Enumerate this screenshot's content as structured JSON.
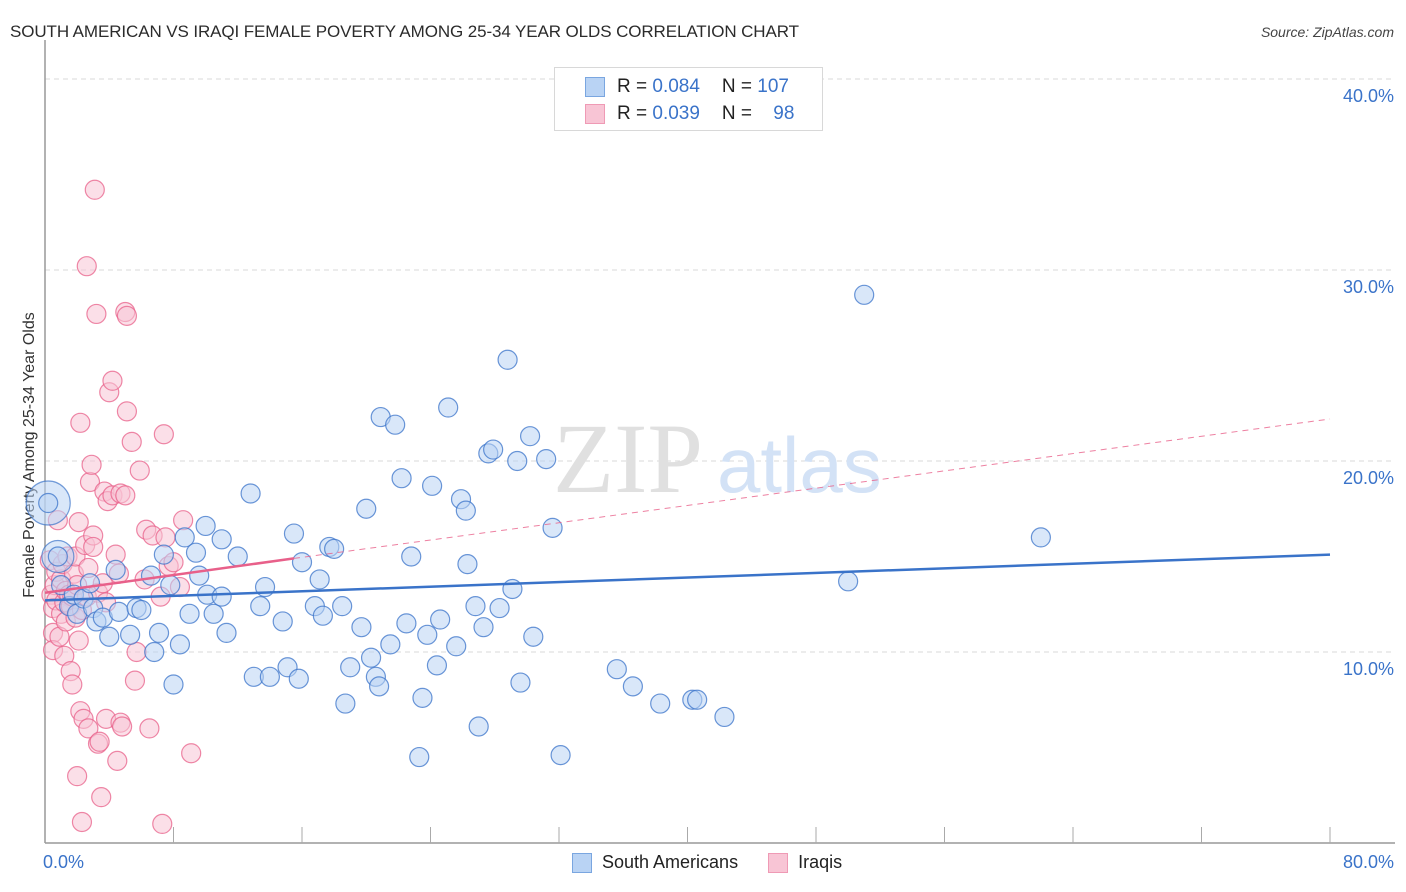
{
  "header": {
    "title": "SOUTH AMERICAN VS IRAQI FEMALE POVERTY AMONG 25-34 YEAR OLDS CORRELATION CHART",
    "source": "Source: ZipAtlas.com"
  },
  "legend_top": {
    "rows": [
      {
        "r_label": "R = ",
        "r_value": "0.084",
        "n_label": "N = ",
        "n_value": "107"
      },
      {
        "r_label": "R = ",
        "r_value": "0.039",
        "n_label": "N = ",
        "n_value": "98"
      }
    ]
  },
  "legend_bottom": {
    "items": [
      {
        "label": "South Americans"
      },
      {
        "label": "Iraqis"
      }
    ]
  },
  "axes": {
    "ylabel": "Female Poverty Among 25-34 Year Olds",
    "yticks": [
      "40.0%",
      "30.0%",
      "20.0%",
      "10.0%"
    ],
    "xticks": [
      "0.0%",
      "80.0%"
    ]
  },
  "colors": {
    "south_americans": "#3a73c9",
    "south_americans_fill": "#b9d3f4",
    "iraqis": "#e8608a",
    "iraqis_fill": "#f8c5d5",
    "tick_text": "#3a73c9"
  },
  "watermark": {
    "zip": "ZIP",
    "atlas": "atlas"
  },
  "chart_data": {
    "type": "scatter",
    "title": "SOUTH AMERICAN VS IRAQI FEMALE POVERTY AMONG 25-34 YEAR OLDS CORRELATION CHART",
    "xlabel": "",
    "ylabel": "Female Poverty Among 25-34 Year Olds",
    "xlim": [
      0,
      80
    ],
    "ylim": [
      0,
      40
    ],
    "x_tick_labels": [
      "0.0%",
      "80.0%"
    ],
    "y_tick_labels": [
      "10.0%",
      "20.0%",
      "30.0%",
      "40.0%"
    ],
    "grid": true,
    "legend_position": "bottom",
    "series": [
      {
        "name": "South Americans",
        "R": 0.084,
        "N": 107,
        "trendline": {
          "x": [
            0,
            80
          ],
          "y": [
            12.7,
            15.1
          ]
        },
        "points": [
          [
            0.2,
            17.8
          ],
          [
            0.8,
            15.0
          ],
          [
            1.0,
            13.5
          ],
          [
            1.5,
            12.4
          ],
          [
            1.8,
            13.0
          ],
          [
            2.0,
            12.0
          ],
          [
            2.4,
            12.8
          ],
          [
            2.8,
            13.6
          ],
          [
            3.0,
            12.3
          ],
          [
            3.2,
            11.6
          ],
          [
            3.6,
            11.8
          ],
          [
            4.0,
            10.8
          ],
          [
            4.4,
            14.3
          ],
          [
            4.6,
            12.1
          ],
          [
            5.3,
            10.9
          ],
          [
            5.7,
            12.3
          ],
          [
            6.0,
            12.2
          ],
          [
            6.6,
            14.0
          ],
          [
            6.8,
            10.0
          ],
          [
            7.1,
            11.0
          ],
          [
            7.4,
            15.1
          ],
          [
            7.8,
            13.5
          ],
          [
            8.0,
            8.3
          ],
          [
            8.4,
            10.4
          ],
          [
            8.7,
            16.0
          ],
          [
            9.0,
            12.0
          ],
          [
            9.4,
            15.2
          ],
          [
            9.6,
            14.0
          ],
          [
            10.0,
            16.6
          ],
          [
            10.1,
            13.0
          ],
          [
            10.5,
            12.0
          ],
          [
            11.0,
            12.9
          ],
          [
            11.0,
            15.9
          ],
          [
            11.3,
            11.0
          ],
          [
            12.0,
            15.0
          ],
          [
            12.8,
            18.3
          ],
          [
            13.0,
            8.7
          ],
          [
            13.4,
            12.4
          ],
          [
            13.7,
            13.4
          ],
          [
            14.0,
            8.7
          ],
          [
            14.8,
            11.6
          ],
          [
            15.1,
            9.2
          ],
          [
            15.5,
            16.2
          ],
          [
            15.8,
            8.6
          ],
          [
            16.0,
            14.7
          ],
          [
            16.8,
            12.4
          ],
          [
            17.1,
            13.8
          ],
          [
            17.3,
            11.9
          ],
          [
            17.7,
            15.5
          ],
          [
            18.0,
            15.4
          ],
          [
            18.5,
            12.4
          ],
          [
            18.7,
            7.3
          ],
          [
            19.0,
            9.2
          ],
          [
            19.7,
            11.3
          ],
          [
            20.0,
            17.5
          ],
          [
            20.3,
            9.7
          ],
          [
            20.6,
            8.7
          ],
          [
            20.8,
            8.2
          ],
          [
            20.9,
            22.3
          ],
          [
            21.5,
            10.4
          ],
          [
            21.8,
            21.9
          ],
          [
            22.2,
            19.1
          ],
          [
            22.5,
            11.5
          ],
          [
            22.8,
            15.0
          ],
          [
            23.3,
            4.5
          ],
          [
            23.5,
            7.6
          ],
          [
            23.8,
            10.9
          ],
          [
            24.1,
            18.7
          ],
          [
            24.4,
            9.3
          ],
          [
            24.6,
            11.7
          ],
          [
            25.1,
            22.8
          ],
          [
            25.6,
            10.3
          ],
          [
            25.9,
            18.0
          ],
          [
            26.2,
            17.4
          ],
          [
            26.3,
            14.6
          ],
          [
            26.8,
            12.4
          ],
          [
            27.0,
            6.1
          ],
          [
            27.3,
            11.3
          ],
          [
            27.6,
            20.4
          ],
          [
            27.9,
            20.6
          ],
          [
            28.3,
            12.3
          ],
          [
            28.8,
            25.3
          ],
          [
            29.1,
            13.3
          ],
          [
            29.4,
            20.0
          ],
          [
            29.6,
            8.4
          ],
          [
            30.2,
            21.3
          ],
          [
            30.4,
            10.8
          ],
          [
            31.2,
            20.1
          ],
          [
            31.6,
            16.5
          ],
          [
            32.1,
            4.6
          ],
          [
            35.6,
            9.1
          ],
          [
            36.6,
            8.2
          ],
          [
            38.3,
            7.3
          ],
          [
            40.3,
            7.5
          ],
          [
            40.6,
            7.5
          ],
          [
            42.3,
            6.6
          ],
          [
            50.0,
            13.7
          ],
          [
            51.0,
            28.7
          ],
          [
            62.0,
            16.0
          ]
        ]
      },
      {
        "name": "Iraqis",
        "R": 0.039,
        "N": 98,
        "trendline": {
          "x": [
            0,
            15.5
          ],
          "y": [
            13.1,
            14.9
          ],
          "extrapolated": {
            "x": [
              15.5,
              80
            ],
            "y": [
              14.9,
              22.2
            ]
          }
        },
        "points": [
          [
            0.3,
            14.8
          ],
          [
            0.4,
            13.0
          ],
          [
            0.5,
            12.3
          ],
          [
            0.5,
            11.0
          ],
          [
            0.5,
            10.1
          ],
          [
            0.6,
            13.5
          ],
          [
            0.7,
            12.7
          ],
          [
            0.7,
            14.2
          ],
          [
            0.8,
            16.9
          ],
          [
            0.9,
            10.8
          ],
          [
            1.0,
            13.8
          ],
          [
            1.0,
            12.0
          ],
          [
            1.1,
            14.6
          ],
          [
            1.2,
            12.6
          ],
          [
            1.2,
            9.8
          ],
          [
            1.3,
            13.2
          ],
          [
            1.3,
            11.6
          ],
          [
            1.4,
            15.0
          ],
          [
            1.5,
            13.0
          ],
          [
            1.6,
            12.4
          ],
          [
            1.6,
            9.0
          ],
          [
            1.7,
            12.9
          ],
          [
            1.7,
            8.3
          ],
          [
            1.8,
            14.1
          ],
          [
            1.9,
            11.8
          ],
          [
            1.9,
            15.0
          ],
          [
            2.0,
            3.5
          ],
          [
            2.0,
            13.5
          ],
          [
            2.1,
            10.6
          ],
          [
            2.1,
            16.8
          ],
          [
            2.2,
            6.9
          ],
          [
            2.2,
            22.0
          ],
          [
            2.3,
            12.2
          ],
          [
            2.3,
            1.1
          ],
          [
            2.4,
            6.5
          ],
          [
            2.5,
            15.6
          ],
          [
            2.6,
            30.2
          ],
          [
            2.6,
            12.9
          ],
          [
            2.7,
            14.4
          ],
          [
            2.7,
            6.0
          ],
          [
            2.8,
            18.9
          ],
          [
            2.9,
            19.8
          ],
          [
            3.0,
            16.1
          ],
          [
            3.0,
            15.5
          ],
          [
            3.1,
            34.2
          ],
          [
            3.2,
            27.7
          ],
          [
            3.3,
            5.2
          ],
          [
            3.3,
            13.1
          ],
          [
            3.4,
            5.3
          ],
          [
            3.5,
            2.4
          ],
          [
            3.6,
            13.6
          ],
          [
            3.7,
            18.4
          ],
          [
            3.8,
            12.6
          ],
          [
            3.8,
            6.5
          ],
          [
            3.9,
            17.9
          ],
          [
            4.0,
            23.6
          ],
          [
            4.2,
            24.2
          ],
          [
            4.2,
            18.2
          ],
          [
            4.4,
            15.1
          ],
          [
            4.5,
            4.3
          ],
          [
            4.6,
            14.1
          ],
          [
            4.7,
            18.3
          ],
          [
            4.7,
            6.3
          ],
          [
            4.8,
            6.1
          ],
          [
            5.0,
            18.2
          ],
          [
            5.0,
            27.8
          ],
          [
            5.1,
            22.6
          ],
          [
            5.1,
            27.6
          ],
          [
            5.4,
            21.0
          ],
          [
            5.6,
            8.5
          ],
          [
            5.7,
            10.0
          ],
          [
            5.9,
            19.5
          ],
          [
            6.2,
            13.8
          ],
          [
            6.3,
            16.4
          ],
          [
            6.5,
            6.0
          ],
          [
            6.7,
            16.1
          ],
          [
            7.2,
            12.9
          ],
          [
            7.3,
            1.0
          ],
          [
            7.4,
            21.4
          ],
          [
            7.5,
            16.0
          ],
          [
            7.7,
            14.5
          ],
          [
            8.0,
            14.7
          ],
          [
            8.4,
            13.4
          ],
          [
            8.6,
            16.9
          ],
          [
            9.1,
            4.7
          ]
        ]
      }
    ]
  }
}
